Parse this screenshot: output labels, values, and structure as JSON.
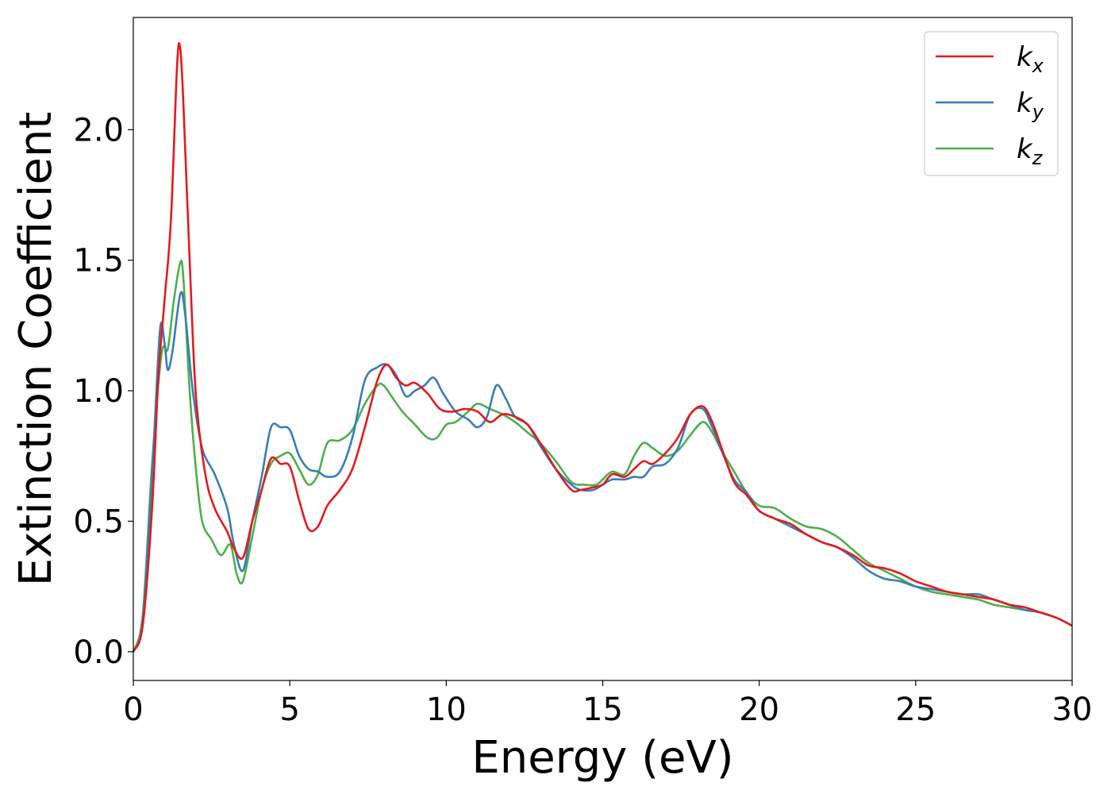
{
  "chart_data": {
    "type": "line",
    "xlabel": "Energy (eV)",
    "ylabel": "Extinction Coefficient",
    "xlim": [
      0,
      30
    ],
    "ylim": [
      -0.11,
      2.43
    ],
    "xticks": [
      0,
      5,
      10,
      15,
      20,
      25,
      30
    ],
    "xtick_labels": [
      "0",
      "5",
      "10",
      "15",
      "20",
      "25",
      "30"
    ],
    "yticks": [
      0.0,
      0.5,
      1.0,
      1.5,
      2.0
    ],
    "ytick_labels": [
      "0.0",
      "0.5",
      "1.0",
      "1.5",
      "2.0"
    ],
    "grid": false,
    "legend_position": "top-right",
    "series": [
      {
        "name": "k_x",
        "legend_main": "k",
        "legend_sub": "x",
        "color": "#e41a1c",
        "x": [
          0,
          0.3,
          0.6,
          0.8,
          1.0,
          1.2,
          1.4,
          1.5,
          1.6,
          1.8,
          2.0,
          2.3,
          2.6,
          3.0,
          3.2,
          3.5,
          3.8,
          4.1,
          4.4,
          4.7,
          5.0,
          5.3,
          5.6,
          5.9,
          6.2,
          6.6,
          7.0,
          7.4,
          7.8,
          8.1,
          8.4,
          8.7,
          9.0,
          9.4,
          9.8,
          10.2,
          10.6,
          11.0,
          11.4,
          11.8,
          12.2,
          12.6,
          13.0,
          13.5,
          14.0,
          14.3,
          14.7,
          15.0,
          15.3,
          15.7,
          16.0,
          16.3,
          16.6,
          17.0,
          17.4,
          17.8,
          18.2,
          18.5,
          18.8,
          19.2,
          19.6,
          20.0,
          20.5,
          21.0,
          21.5,
          22.0,
          22.5,
          23.0,
          23.5,
          24.0,
          24.5,
          25.0,
          25.5,
          26.0,
          26.5,
          27.0,
          27.5,
          28.0,
          28.5,
          29.0,
          29.5,
          30.0
        ],
        "y": [
          0.0,
          0.1,
          0.55,
          1.05,
          1.35,
          1.65,
          2.25,
          2.31,
          2.1,
          1.5,
          0.98,
          0.68,
          0.55,
          0.46,
          0.4,
          0.36,
          0.5,
          0.62,
          0.74,
          0.72,
          0.71,
          0.58,
          0.47,
          0.48,
          0.56,
          0.62,
          0.7,
          0.86,
          1.04,
          1.1,
          1.05,
          1.02,
          1.03,
          0.99,
          0.93,
          0.92,
          0.93,
          0.92,
          0.88,
          0.91,
          0.9,
          0.87,
          0.8,
          0.7,
          0.62,
          0.62,
          0.63,
          0.64,
          0.68,
          0.67,
          0.7,
          0.73,
          0.72,
          0.76,
          0.82,
          0.91,
          0.94,
          0.88,
          0.78,
          0.65,
          0.6,
          0.54,
          0.51,
          0.49,
          0.45,
          0.42,
          0.4,
          0.37,
          0.33,
          0.32,
          0.3,
          0.27,
          0.25,
          0.23,
          0.22,
          0.21,
          0.2,
          0.18,
          0.17,
          0.15,
          0.13,
          0.1
        ]
      },
      {
        "name": "k_y",
        "legend_main": "k",
        "legend_sub": "y",
        "color": "#377eb8",
        "x": [
          0,
          0.3,
          0.6,
          0.85,
          1.0,
          1.1,
          1.25,
          1.5,
          1.65,
          1.9,
          2.2,
          2.6,
          3.0,
          3.2,
          3.5,
          3.8,
          4.1,
          4.4,
          4.7,
          5.0,
          5.3,
          5.6,
          5.9,
          6.2,
          6.6,
          7.0,
          7.4,
          7.8,
          8.1,
          8.4,
          8.7,
          9.0,
          9.3,
          9.6,
          9.9,
          10.3,
          10.7,
          11.0,
          11.3,
          11.6,
          11.9,
          12.2,
          12.6,
          13.0,
          13.5,
          14.0,
          14.3,
          14.7,
          15.0,
          15.3,
          15.7,
          16.0,
          16.3,
          16.6,
          17.0,
          17.4,
          17.8,
          18.2,
          18.5,
          18.8,
          19.2,
          19.6,
          20.0,
          20.5,
          21.0,
          21.5,
          22.0,
          22.5,
          23.0,
          23.5,
          24.0,
          24.5,
          25.0,
          25.5,
          26.0,
          26.5,
          27.0,
          27.5,
          28.0,
          28.5,
          29.0,
          29.5,
          30.0
        ],
        "y": [
          0.0,
          0.12,
          0.68,
          1.23,
          1.18,
          1.08,
          1.15,
          1.37,
          1.3,
          1.0,
          0.78,
          0.68,
          0.55,
          0.42,
          0.31,
          0.5,
          0.67,
          0.86,
          0.86,
          0.85,
          0.75,
          0.7,
          0.69,
          0.67,
          0.69,
          0.82,
          1.04,
          1.09,
          1.1,
          1.06,
          0.98,
          1.0,
          1.02,
          1.05,
          0.99,
          0.92,
          0.89,
          0.86,
          0.9,
          1.02,
          0.97,
          0.9,
          0.87,
          0.79,
          0.7,
          0.64,
          0.62,
          0.62,
          0.64,
          0.66,
          0.66,
          0.67,
          0.67,
          0.71,
          0.72,
          0.78,
          0.91,
          0.93,
          0.86,
          0.77,
          0.66,
          0.61,
          0.54,
          0.51,
          0.48,
          0.45,
          0.42,
          0.4,
          0.36,
          0.31,
          0.28,
          0.27,
          0.25,
          0.24,
          0.23,
          0.22,
          0.22,
          0.2,
          0.18,
          0.16,
          0.15,
          0.13,
          0.1
        ]
      },
      {
        "name": "k_z",
        "legend_main": "k",
        "legend_sub": "z",
        "color": "#4daf4a",
        "x": [
          0,
          0.3,
          0.6,
          0.9,
          1.1,
          1.3,
          1.5,
          1.6,
          1.8,
          2.0,
          2.2,
          2.5,
          2.8,
          3.1,
          3.3,
          3.5,
          3.8,
          4.1,
          4.4,
          4.7,
          5.0,
          5.3,
          5.6,
          5.9,
          6.2,
          6.6,
          7.0,
          7.4,
          7.8,
          8.0,
          8.3,
          8.6,
          9.0,
          9.4,
          9.7,
          10.0,
          10.3,
          10.7,
          11.0,
          11.4,
          11.8,
          12.2,
          12.6,
          13.0,
          13.5,
          14.0,
          14.4,
          14.8,
          15.0,
          15.3,
          15.7,
          16.0,
          16.3,
          16.6,
          17.0,
          17.4,
          17.8,
          18.2,
          18.5,
          18.8,
          19.2,
          19.6,
          20.0,
          20.5,
          21.0,
          21.5,
          22.0,
          22.5,
          23.0,
          23.5,
          24.0,
          24.5,
          25.0,
          25.5,
          26.0,
          26.5,
          27.0,
          27.5,
          28.0,
          28.5,
          29.0,
          29.5,
          30.0
        ],
        "y": [
          0.0,
          0.14,
          0.72,
          1.14,
          1.16,
          1.35,
          1.49,
          1.43,
          1.0,
          0.7,
          0.5,
          0.43,
          0.37,
          0.41,
          0.3,
          0.27,
          0.44,
          0.62,
          0.72,
          0.75,
          0.76,
          0.7,
          0.64,
          0.68,
          0.8,
          0.81,
          0.85,
          0.95,
          1.02,
          1.02,
          0.97,
          0.92,
          0.87,
          0.82,
          0.82,
          0.87,
          0.88,
          0.92,
          0.95,
          0.93,
          0.91,
          0.88,
          0.84,
          0.8,
          0.73,
          0.65,
          0.64,
          0.64,
          0.66,
          0.69,
          0.68,
          0.75,
          0.8,
          0.78,
          0.75,
          0.77,
          0.83,
          0.88,
          0.84,
          0.77,
          0.69,
          0.61,
          0.56,
          0.55,
          0.51,
          0.48,
          0.47,
          0.44,
          0.39,
          0.34,
          0.31,
          0.28,
          0.25,
          0.23,
          0.22,
          0.21,
          0.2,
          0.18,
          0.17,
          0.16,
          0.15,
          0.13,
          0.1
        ]
      }
    ]
  }
}
